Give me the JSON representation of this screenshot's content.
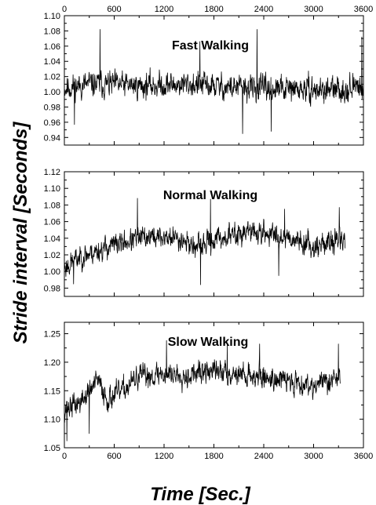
{
  "figure": {
    "ylabel": "Stride interval [Seconds]",
    "xlabel": "Time [Sec.]"
  },
  "chart_data": [
    {
      "type": "line",
      "title": "Fast Walking",
      "xlim": [
        0,
        3600
      ],
      "ylim": [
        0.93,
        1.1
      ],
      "x_ticks": [
        0,
        600,
        1200,
        1800,
        2400,
        3000,
        3600
      ],
      "x_tick_labels_top": [
        "0",
        "600",
        "1200",
        "1800",
        "2400",
        "3000",
        "3600"
      ],
      "y_ticks": [
        0.94,
        0.96,
        0.98,
        1.0,
        1.02,
        1.04,
        1.06,
        1.08,
        1.1
      ],
      "y_tick_labels": [
        "0.94",
        "0.96",
        "0.98",
        "1.00",
        "1.02",
        "1.04",
        "1.06",
        "1.08",
        "1.10"
      ],
      "series_extent_x": [
        0,
        3600
      ],
      "noise_seed": 11,
      "trend": [
        [
          0,
          1.005
        ],
        [
          300,
          1.01
        ],
        [
          900,
          1.008
        ],
        [
          1500,
          1.01
        ],
        [
          2100,
          1.005
        ],
        [
          2700,
          1.003
        ],
        [
          3300,
          1.002
        ],
        [
          3600,
          1.008
        ]
      ],
      "noise_amp": 0.02,
      "spikes": [
        [
          430,
          1.082
        ],
        [
          1630,
          1.066
        ],
        [
          2320,
          1.082
        ],
        [
          2145,
          0.945
        ],
        [
          2490,
          0.948
        ],
        [
          3580,
          1.072
        ],
        [
          120,
          0.957
        ]
      ]
    },
    {
      "type": "line",
      "title": "Normal Walking",
      "xlim": [
        0,
        3600
      ],
      "ylim": [
        0.97,
        1.12
      ],
      "x_ticks": [
        0,
        600,
        1200,
        1800,
        2400,
        3000,
        3600
      ],
      "y_ticks": [
        0.98,
        1.0,
        1.02,
        1.04,
        1.06,
        1.08,
        1.1,
        1.12
      ],
      "y_tick_labels": [
        "0.98",
        "1.00",
        "1.02",
        "1.04",
        "1.06",
        "1.08",
        "1.10",
        "1.12"
      ],
      "series_extent_x": [
        0,
        3380
      ],
      "noise_seed": 23,
      "trend": [
        [
          0,
          1.005
        ],
        [
          200,
          1.018
        ],
        [
          600,
          1.032
        ],
        [
          1000,
          1.042
        ],
        [
          1400,
          1.04
        ],
        [
          1600,
          1.028
        ],
        [
          1800,
          1.038
        ],
        [
          2200,
          1.048
        ],
        [
          2700,
          1.042
        ],
        [
          3000,
          1.03
        ],
        [
          3380,
          1.04
        ]
      ],
      "noise_amp": 0.016,
      "spikes": [
        [
          880,
          1.088
        ],
        [
          1760,
          1.087
        ],
        [
          2650,
          1.075
        ],
        [
          3310,
          1.077
        ],
        [
          1640,
          0.984
        ],
        [
          2580,
          0.995
        ],
        [
          110,
          0.985
        ]
      ]
    },
    {
      "type": "line",
      "title": "Slow Walking",
      "xlim": [
        0,
        3600
      ],
      "ylim": [
        1.05,
        1.27
      ],
      "x_ticks": [
        0,
        600,
        1200,
        1800,
        2400,
        3000,
        3600
      ],
      "x_tick_labels": [
        "0",
        "600",
        "1200",
        "1800",
        "2400",
        "3000",
        "3600"
      ],
      "y_ticks": [
        1.05,
        1.1,
        1.15,
        1.2,
        1.25
      ],
      "y_tick_labels": [
        "1.05",
        "1.10",
        "1.15",
        "1.20",
        "1.25"
      ],
      "series_extent_x": [
        0,
        3320
      ],
      "noise_seed": 37,
      "trend": [
        [
          0,
          1.118
        ],
        [
          200,
          1.13
        ],
        [
          400,
          1.168
        ],
        [
          520,
          1.135
        ],
        [
          700,
          1.15
        ],
        [
          900,
          1.175
        ],
        [
          1200,
          1.18
        ],
        [
          1500,
          1.178
        ],
        [
          1800,
          1.185
        ],
        [
          2200,
          1.178
        ],
        [
          2600,
          1.17
        ],
        [
          3000,
          1.16
        ],
        [
          3320,
          1.175
        ]
      ],
      "noise_amp": 0.024,
      "spikes": [
        [
          1230,
          1.238
        ],
        [
          1960,
          1.23
        ],
        [
          2350,
          1.232
        ],
        [
          3300,
          1.232
        ],
        [
          30,
          1.062
        ],
        [
          300,
          1.075
        ]
      ]
    }
  ]
}
